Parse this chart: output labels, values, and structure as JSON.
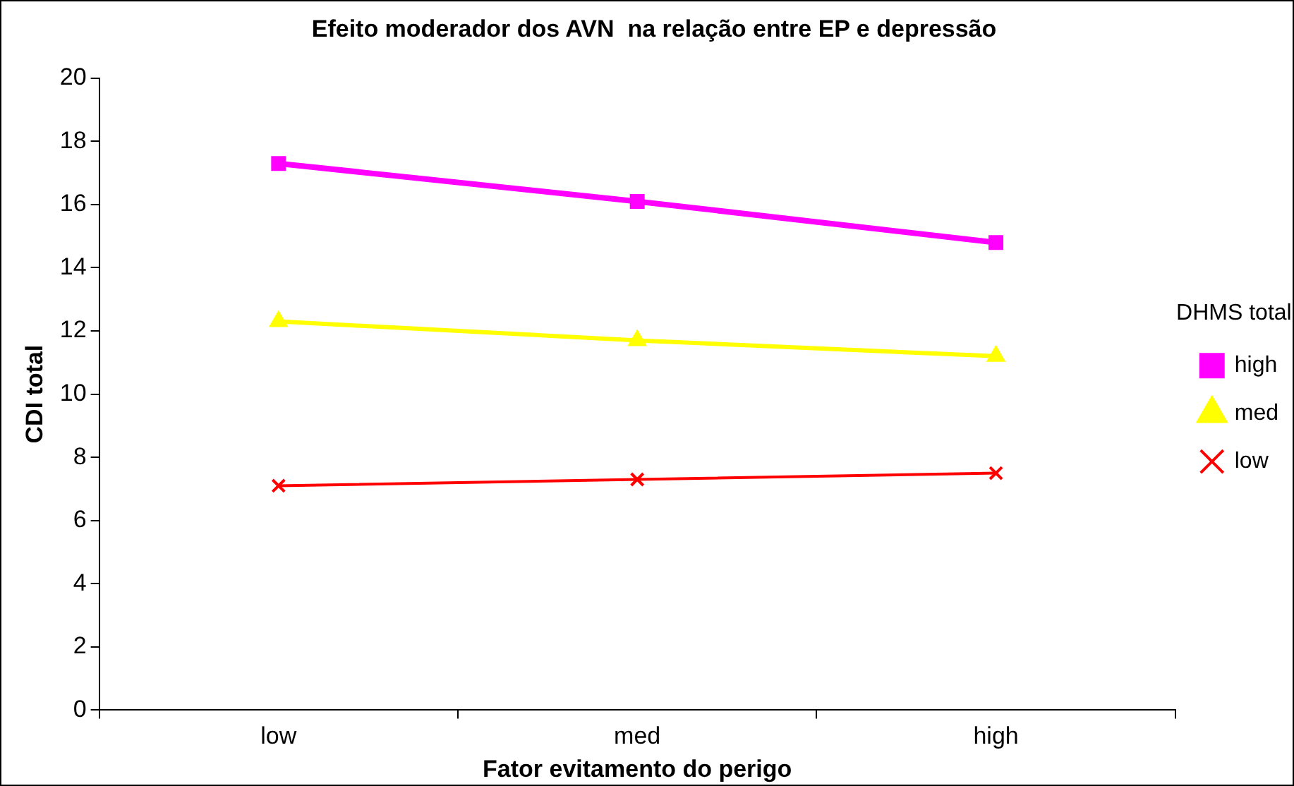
{
  "chart_data": {
    "type": "line",
    "title": "Efeito moderador dos AVN  na relação entre EP e depressão",
    "xlabel": "Fator evitamento do perigo",
    "ylabel": "CDI total",
    "legend_title": "DHMS total",
    "legend": "right",
    "grid": false,
    "categories": [
      "low",
      "med",
      "high"
    ],
    "ylim": [
      0,
      20
    ],
    "yticks": [
      0,
      2,
      4,
      6,
      8,
      10,
      12,
      14,
      16,
      18,
      20
    ],
    "series": [
      {
        "name": "high",
        "color": "#ff00ff",
        "marker": "square",
        "values": [
          17.3,
          16.1,
          14.8
        ]
      },
      {
        "name": "med",
        "color": "#ffff00",
        "marker": "triangle",
        "values": [
          12.3,
          11.7,
          11.2
        ]
      },
      {
        "name": "low",
        "color": "#ff0000",
        "marker": "cross",
        "values": [
          7.1,
          7.3,
          7.5
        ]
      }
    ]
  }
}
